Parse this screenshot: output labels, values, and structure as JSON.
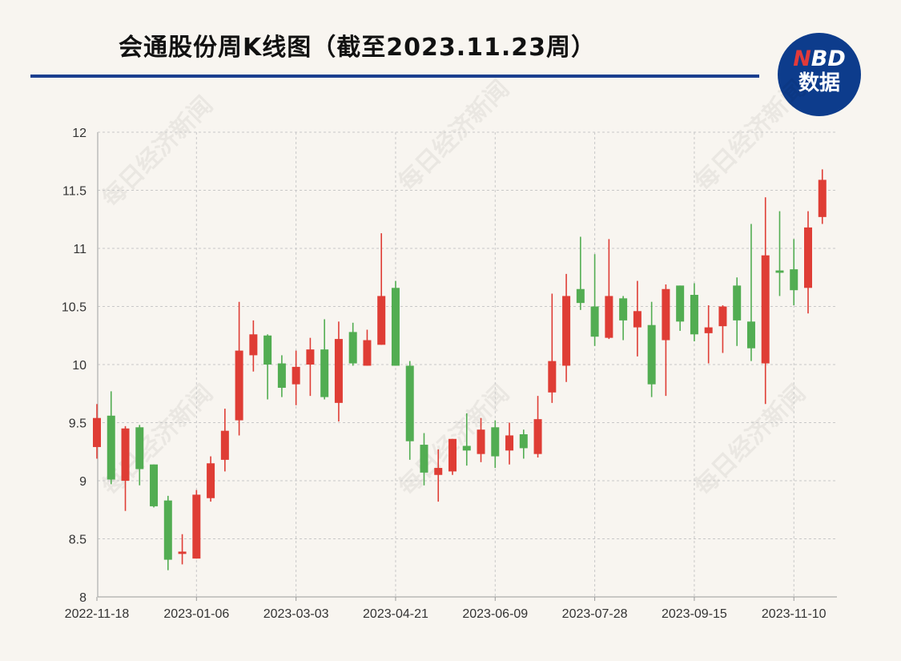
{
  "header": {
    "title": "会通股份周K线图（截至2023.11.23周）",
    "logo_text": "NBD数据",
    "watermark": "每日经济新闻"
  },
  "colors": {
    "up": "#df3d35",
    "down": "#52ad52",
    "title_rule": "#1b3f8f",
    "logo_bg": "#0d3c8c",
    "background": "#f8f5f0"
  },
  "chart_data": {
    "type": "candlestick",
    "title": "会通股份周K线图（截至2023.11.23周）",
    "ylim": [
      8,
      12
    ],
    "yticks": [
      8,
      8.5,
      9,
      9.5,
      10,
      10.5,
      11,
      11.5,
      12
    ],
    "ytick_labels": [
      "8",
      "8.5",
      "9",
      "9.5",
      "10",
      "10.5",
      "11",
      "11.5",
      "12"
    ],
    "xtick_labels": [
      "2022-11-18",
      "2023-01-06",
      "2023-03-03",
      "2023-04-21",
      "2023-06-09",
      "2023-07-28",
      "2023-09-15",
      "2023-11-10"
    ],
    "grid": true,
    "up_color": "red",
    "down_color": "green",
    "x": [
      "2022-11-18",
      "2022-11-25",
      "2022-12-02",
      "2022-12-09",
      "2022-12-16",
      "2022-12-23",
      "2022-12-30",
      "2023-01-06",
      "2023-01-13",
      "2023-01-20",
      "2023-02-03",
      "2023-02-10",
      "2023-02-17",
      "2023-02-24",
      "2023-03-03",
      "2023-03-10",
      "2023-03-17",
      "2023-03-24",
      "2023-03-31",
      "2023-04-07",
      "2023-04-14",
      "2023-04-21",
      "2023-04-28",
      "2023-05-05",
      "2023-05-12",
      "2023-05-19",
      "2023-05-26",
      "2023-06-02",
      "2023-06-09",
      "2023-06-16",
      "2023-06-21",
      "2023-06-30",
      "2023-07-07",
      "2023-07-14",
      "2023-07-21",
      "2023-07-28",
      "2023-08-04",
      "2023-08-11",
      "2023-08-18",
      "2023-08-25",
      "2023-09-01",
      "2023-09-08",
      "2023-09-15",
      "2023-09-22",
      "2023-09-28",
      "2023-10-13",
      "2023-10-20",
      "2023-10-27",
      "2023-11-03",
      "2023-11-10",
      "2023-11-17",
      "2023-11-23"
    ],
    "ohlc": [
      [
        9.29,
        9.66,
        9.19,
        9.54
      ],
      [
        9.56,
        9.77,
        8.97,
        9.01
      ],
      [
        9.0,
        9.47,
        8.74,
        9.45
      ],
      [
        9.46,
        9.48,
        8.96,
        9.1
      ],
      [
        9.14,
        9.14,
        8.77,
        8.78
      ],
      [
        8.83,
        8.87,
        8.23,
        8.32
      ],
      [
        8.37,
        8.54,
        8.28,
        8.39
      ],
      [
        8.33,
        8.92,
        8.33,
        8.88
      ],
      [
        8.85,
        9.21,
        8.82,
        9.15
      ],
      [
        9.18,
        9.62,
        9.08,
        9.43
      ],
      [
        9.52,
        10.54,
        9.39,
        10.12
      ],
      [
        10.08,
        10.38,
        9.94,
        10.26
      ],
      [
        10.25,
        10.26,
        9.7,
        10.0
      ],
      [
        10.01,
        10.08,
        9.72,
        9.8
      ],
      [
        9.83,
        10.12,
        9.65,
        9.98
      ],
      [
        10.0,
        10.23,
        9.73,
        10.13
      ],
      [
        10.13,
        10.39,
        9.7,
        9.72
      ],
      [
        9.67,
        10.37,
        9.51,
        10.22
      ],
      [
        10.28,
        10.36,
        9.99,
        10.01
      ],
      [
        9.99,
        10.3,
        9.99,
        10.21
      ],
      [
        10.17,
        11.13,
        10.17,
        10.59
      ],
      [
        10.66,
        10.72,
        9.99,
        9.99
      ],
      [
        9.99,
        10.03,
        9.18,
        9.34
      ],
      [
        9.31,
        9.41,
        8.96,
        9.07
      ],
      [
        9.05,
        9.27,
        8.82,
        9.11
      ],
      [
        9.08,
        9.36,
        9.05,
        9.36
      ],
      [
        9.3,
        9.58,
        9.13,
        9.26
      ],
      [
        9.23,
        9.54,
        9.16,
        9.44
      ],
      [
        9.46,
        9.52,
        9.11,
        9.21
      ],
      [
        9.26,
        9.5,
        9.14,
        9.39
      ],
      [
        9.4,
        9.44,
        9.19,
        9.28
      ],
      [
        9.23,
        9.73,
        9.2,
        9.53
      ],
      [
        9.76,
        10.61,
        9.67,
        10.03
      ],
      [
        9.99,
        10.78,
        9.85,
        10.59
      ],
      [
        10.65,
        11.1,
        10.47,
        10.53
      ],
      [
        10.5,
        10.95,
        10.16,
        10.24
      ],
      [
        10.23,
        11.08,
        10.22,
        10.59
      ],
      [
        10.57,
        10.59,
        10.21,
        10.38
      ],
      [
        10.32,
        10.72,
        10.07,
        10.46
      ],
      [
        10.34,
        10.54,
        9.72,
        9.83
      ],
      [
        10.21,
        10.69,
        9.73,
        10.65
      ],
      [
        10.68,
        10.68,
        10.29,
        10.37
      ],
      [
        10.6,
        10.7,
        10.2,
        10.26
      ],
      [
        10.27,
        10.51,
        10.01,
        10.32
      ],
      [
        10.33,
        10.51,
        10.1,
        10.5
      ],
      [
        10.68,
        10.75,
        10.16,
        10.38
      ],
      [
        10.37,
        11.21,
        10.03,
        10.14
      ],
      [
        10.01,
        11.44,
        9.66,
        10.94
      ],
      [
        10.81,
        11.32,
        10.59,
        10.79
      ],
      [
        10.82,
        11.08,
        10.51,
        10.64
      ],
      [
        10.66,
        11.32,
        10.44,
        11.18
      ],
      [
        11.27,
        11.68,
        11.21,
        11.59
      ]
    ]
  }
}
